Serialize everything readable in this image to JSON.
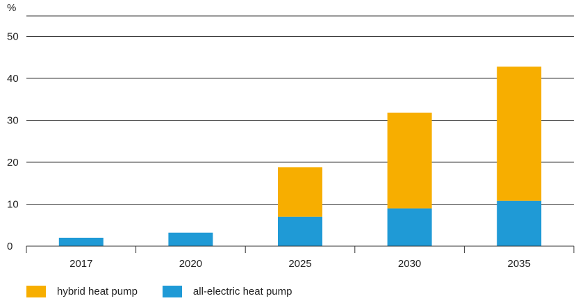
{
  "chart_data": {
    "type": "bar",
    "stacked": true,
    "ylabel": "%",
    "ylim": [
      0,
      55
    ],
    "yticks": [
      0,
      10,
      20,
      30,
      40,
      50
    ],
    "grid": true,
    "categories": [
      "2017",
      "2020",
      "2025",
      "2030",
      "2035"
    ],
    "series": [
      {
        "name": "all-electric heat pump",
        "color": "#1f9ad6",
        "values": [
          2,
          3.2,
          7,
          9,
          10.8
        ]
      },
      {
        "name": "hybrid heat pump",
        "color": "#f7ae00",
        "values": [
          0,
          0,
          11.8,
          22.8,
          32
        ]
      }
    ],
    "legend_position": "bottom-left"
  },
  "legend": {
    "hybrid_label": "hybrid heat pump",
    "electric_label": "all-electric heat pump"
  }
}
